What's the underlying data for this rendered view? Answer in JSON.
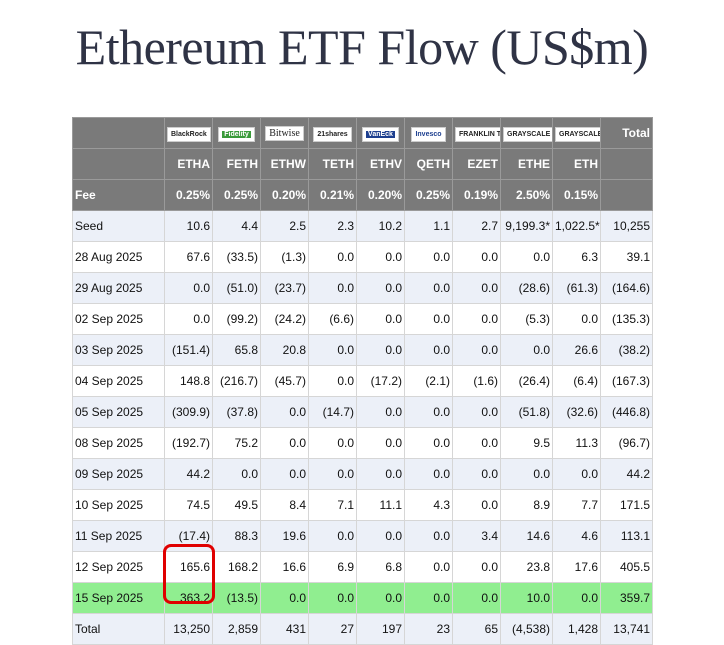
{
  "title": "Ethereum ETF Flow (US$m)",
  "issuers": [
    "BlackRock",
    "Fidelity",
    "Bitwise",
    "21shares",
    "VanEck",
    "Invesco",
    "FRANKLIN TEMPLETON",
    "GRAYSCALE",
    "GRAYSCALE"
  ],
  "total_label": "Total",
  "tickers": [
    "ETHA",
    "FETH",
    "ETHW",
    "TETH",
    "ETHV",
    "QETH",
    "EZET",
    "ETHE",
    "ETH"
  ],
  "fee_label": "Fee",
  "fees": [
    "0.25%",
    "0.25%",
    "0.20%",
    "0.21%",
    "0.20%",
    "0.25%",
    "0.19%",
    "2.50%",
    "0.15%"
  ],
  "rows": [
    {
      "date": "Seed",
      "vals": [
        "10.6",
        "4.4",
        "2.5",
        "2.3",
        "10.2",
        "1.1",
        "2.7",
        "9,199.3*",
        "1,022.5*",
        "10,255"
      ]
    },
    {
      "date": "28 Aug 2025",
      "vals": [
        "67.6",
        "(33.5)",
        "(1.3)",
        "0.0",
        "0.0",
        "0.0",
        "0.0",
        "0.0",
        "6.3",
        "39.1"
      ]
    },
    {
      "date": "29 Aug 2025",
      "vals": [
        "0.0",
        "(51.0)",
        "(23.7)",
        "0.0",
        "0.0",
        "0.0",
        "0.0",
        "(28.6)",
        "(61.3)",
        "(164.6)"
      ]
    },
    {
      "date": "02 Sep 2025",
      "vals": [
        "0.0",
        "(99.2)",
        "(24.2)",
        "(6.6)",
        "0.0",
        "0.0",
        "0.0",
        "(5.3)",
        "0.0",
        "(135.3)"
      ]
    },
    {
      "date": "03 Sep 2025",
      "vals": [
        "(151.4)",
        "65.8",
        "20.8",
        "0.0",
        "0.0",
        "0.0",
        "0.0",
        "0.0",
        "26.6",
        "(38.2)"
      ]
    },
    {
      "date": "04 Sep 2025",
      "vals": [
        "148.8",
        "(216.7)",
        "(45.7)",
        "0.0",
        "(17.2)",
        "(2.1)",
        "(1.6)",
        "(26.4)",
        "(6.4)",
        "(167.3)"
      ]
    },
    {
      "date": "05 Sep 2025",
      "vals": [
        "(309.9)",
        "(37.8)",
        "0.0",
        "(14.7)",
        "0.0",
        "0.0",
        "0.0",
        "(51.8)",
        "(32.6)",
        "(446.8)"
      ]
    },
    {
      "date": "08 Sep 2025",
      "vals": [
        "(192.7)",
        "75.2",
        "0.0",
        "0.0",
        "0.0",
        "0.0",
        "0.0",
        "9.5",
        "11.3",
        "(96.7)"
      ]
    },
    {
      "date": "09 Sep 2025",
      "vals": [
        "44.2",
        "0.0",
        "0.0",
        "0.0",
        "0.0",
        "0.0",
        "0.0",
        "0.0",
        "0.0",
        "44.2"
      ]
    },
    {
      "date": "10 Sep 2025",
      "vals": [
        "74.5",
        "49.5",
        "8.4",
        "7.1",
        "11.1",
        "4.3",
        "0.0",
        "8.9",
        "7.7",
        "171.5"
      ]
    },
    {
      "date": "11 Sep 2025",
      "vals": [
        "(17.4)",
        "88.3",
        "19.6",
        "0.0",
        "0.0",
        "0.0",
        "3.4",
        "14.6",
        "4.6",
        "113.1"
      ]
    },
    {
      "date": "12 Sep 2025",
      "vals": [
        "165.6",
        "168.2",
        "16.6",
        "6.9",
        "6.8",
        "0.0",
        "0.0",
        "23.8",
        "17.6",
        "405.5"
      ]
    },
    {
      "date": "15 Sep 2025",
      "vals": [
        "363.2",
        "(13.5)",
        "0.0",
        "0.0",
        "0.0",
        "0.0",
        "0.0",
        "10.0",
        "0.0",
        "359.7"
      ]
    },
    {
      "date": "Total",
      "vals": [
        "13,250",
        "2,859",
        "431",
        "27",
        "197",
        "23",
        "65",
        "(4,538)",
        "1,428",
        "13,741"
      ]
    }
  ]
}
